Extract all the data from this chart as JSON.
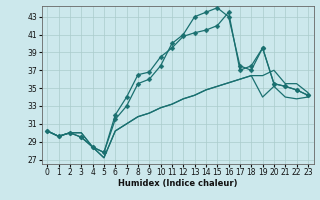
{
  "xlabel": "Humidex (Indice chaleur)",
  "background_color": "#cce8ec",
  "grid_color": "#aacccc",
  "line_color": "#1a7070",
  "xlim": [
    -0.5,
    23.5
  ],
  "ylim": [
    26.5,
    44.2
  ],
  "xticks": [
    0,
    1,
    2,
    3,
    4,
    5,
    6,
    7,
    8,
    9,
    10,
    11,
    12,
    13,
    14,
    15,
    16,
    17,
    18,
    19,
    20,
    21,
    22,
    23
  ],
  "yticks": [
    27,
    29,
    31,
    33,
    35,
    37,
    39,
    41,
    43
  ],
  "lines": [
    {
      "x": [
        0,
        1,
        2,
        3,
        4,
        5,
        6,
        7,
        8,
        9,
        10,
        11,
        12,
        13,
        14,
        15,
        16,
        17,
        18,
        19,
        20,
        21,
        22,
        23
      ],
      "y": [
        30.2,
        29.6,
        30.0,
        30.0,
        28.4,
        27.2,
        30.2,
        31.0,
        31.8,
        32.2,
        32.8,
        33.2,
        33.8,
        34.2,
        34.8,
        35.2,
        35.6,
        36.0,
        36.4,
        34.0,
        35.2,
        34.0,
        33.8,
        34.0
      ],
      "marker": false
    },
    {
      "x": [
        0,
        1,
        2,
        3,
        4,
        5,
        6,
        7,
        8,
        9,
        10,
        11,
        12,
        13,
        14,
        15,
        16,
        17,
        18,
        19,
        20,
        21,
        22,
        23
      ],
      "y": [
        30.2,
        29.6,
        30.0,
        30.0,
        28.4,
        27.2,
        30.2,
        31.0,
        31.8,
        32.2,
        32.8,
        33.2,
        33.8,
        34.2,
        34.8,
        35.2,
        35.6,
        36.0,
        36.4,
        36.4,
        37.0,
        35.5,
        35.5,
        34.5
      ],
      "marker": false
    },
    {
      "x": [
        0,
        1,
        2,
        3,
        4,
        5,
        6,
        7,
        8,
        9,
        10,
        11,
        12,
        13,
        14,
        15,
        16,
        17,
        18,
        19,
        20,
        21,
        22,
        23
      ],
      "y": [
        30.2,
        29.6,
        30.0,
        29.5,
        28.4,
        27.8,
        31.5,
        33.0,
        35.5,
        36.0,
        37.5,
        40.0,
        41.0,
        43.0,
        43.5,
        44.0,
        43.0,
        37.5,
        37.0,
        39.5,
        35.5,
        35.2,
        34.8,
        34.2
      ],
      "marker": true
    },
    {
      "x": [
        0,
        1,
        2,
        3,
        4,
        5,
        6,
        7,
        8,
        9,
        10,
        11,
        12,
        13,
        14,
        15,
        16,
        17,
        18,
        19,
        20,
        21,
        22,
        23
      ],
      "y": [
        30.2,
        29.6,
        30.0,
        29.5,
        28.4,
        27.8,
        32.0,
        34.0,
        36.5,
        36.8,
        38.5,
        39.5,
        40.8,
        41.2,
        41.5,
        42.0,
        43.5,
        37.0,
        37.5,
        39.5,
        35.5,
        35.2,
        34.8,
        34.2
      ],
      "marker": true
    }
  ]
}
